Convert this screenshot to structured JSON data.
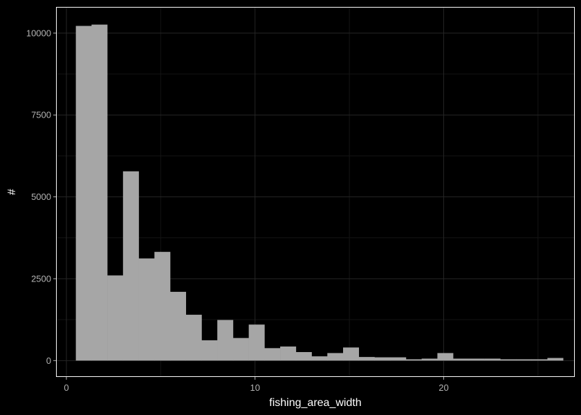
{
  "chart_data": {
    "type": "bar",
    "title": "",
    "xlabel": "fishing_area_width",
    "ylabel": "#",
    "xlim": [
      -0.55,
      26.95
    ],
    "ylim": [
      -500,
      10800
    ],
    "x_ticks": [
      0,
      10,
      20
    ],
    "y_ticks": [
      0,
      2500,
      5000,
      7500,
      10000
    ],
    "x_tick_labels": [
      "0",
      "10",
      "20"
    ],
    "y_tick_labels": [
      "0",
      "2500",
      "5000",
      "7500",
      "10000"
    ],
    "grid": true,
    "bin_width": 0.833,
    "bins": [
      {
        "x0": 0.5,
        "x1": 1.333,
        "count": 10220
      },
      {
        "x0": 1.333,
        "x1": 2.167,
        "count": 10260
      },
      {
        "x0": 2.167,
        "x1": 3.0,
        "count": 2600
      },
      {
        "x0": 3.0,
        "x1": 3.833,
        "count": 5780
      },
      {
        "x0": 3.833,
        "x1": 4.667,
        "count": 3120
      },
      {
        "x0": 4.667,
        "x1": 5.5,
        "count": 3320
      },
      {
        "x0": 5.5,
        "x1": 6.333,
        "count": 2100
      },
      {
        "x0": 6.333,
        "x1": 7.167,
        "count": 1400
      },
      {
        "x0": 7.167,
        "x1": 8.0,
        "count": 620
      },
      {
        "x0": 8.0,
        "x1": 8.833,
        "count": 1240
      },
      {
        "x0": 8.833,
        "x1": 9.667,
        "count": 690
      },
      {
        "x0": 9.667,
        "x1": 10.5,
        "count": 1100
      },
      {
        "x0": 10.5,
        "x1": 11.333,
        "count": 380
      },
      {
        "x0": 11.333,
        "x1": 12.167,
        "count": 430
      },
      {
        "x0": 12.167,
        "x1": 13.0,
        "count": 260
      },
      {
        "x0": 13.0,
        "x1": 13.833,
        "count": 130
      },
      {
        "x0": 13.833,
        "x1": 14.667,
        "count": 230
      },
      {
        "x0": 14.667,
        "x1": 15.5,
        "count": 400
      },
      {
        "x0": 15.5,
        "x1": 16.333,
        "count": 110
      },
      {
        "x0": 16.333,
        "x1": 17.167,
        "count": 100
      },
      {
        "x0": 17.167,
        "x1": 18.0,
        "count": 100
      },
      {
        "x0": 18.0,
        "x1": 18.833,
        "count": 40
      },
      {
        "x0": 18.833,
        "x1": 19.667,
        "count": 60
      },
      {
        "x0": 19.667,
        "x1": 20.5,
        "count": 230
      },
      {
        "x0": 20.5,
        "x1": 21.333,
        "count": 60
      },
      {
        "x0": 21.333,
        "x1": 22.167,
        "count": 60
      },
      {
        "x0": 22.167,
        "x1": 23.0,
        "count": 60
      },
      {
        "x0": 23.0,
        "x1": 23.833,
        "count": 40
      },
      {
        "x0": 23.833,
        "x1": 24.667,
        "count": 40
      },
      {
        "x0": 24.667,
        "x1": 25.5,
        "count": 40
      },
      {
        "x0": 25.5,
        "x1": 26.333,
        "count": 80
      }
    ],
    "colors": {
      "background": "#000000",
      "panel_border": "#ffffff",
      "major_grid": "#262626",
      "minor_grid": "#141414",
      "bar_fill": "#a6a6a6",
      "tick_label": "#b3b3b3",
      "axis_title": "#ffffff"
    }
  }
}
